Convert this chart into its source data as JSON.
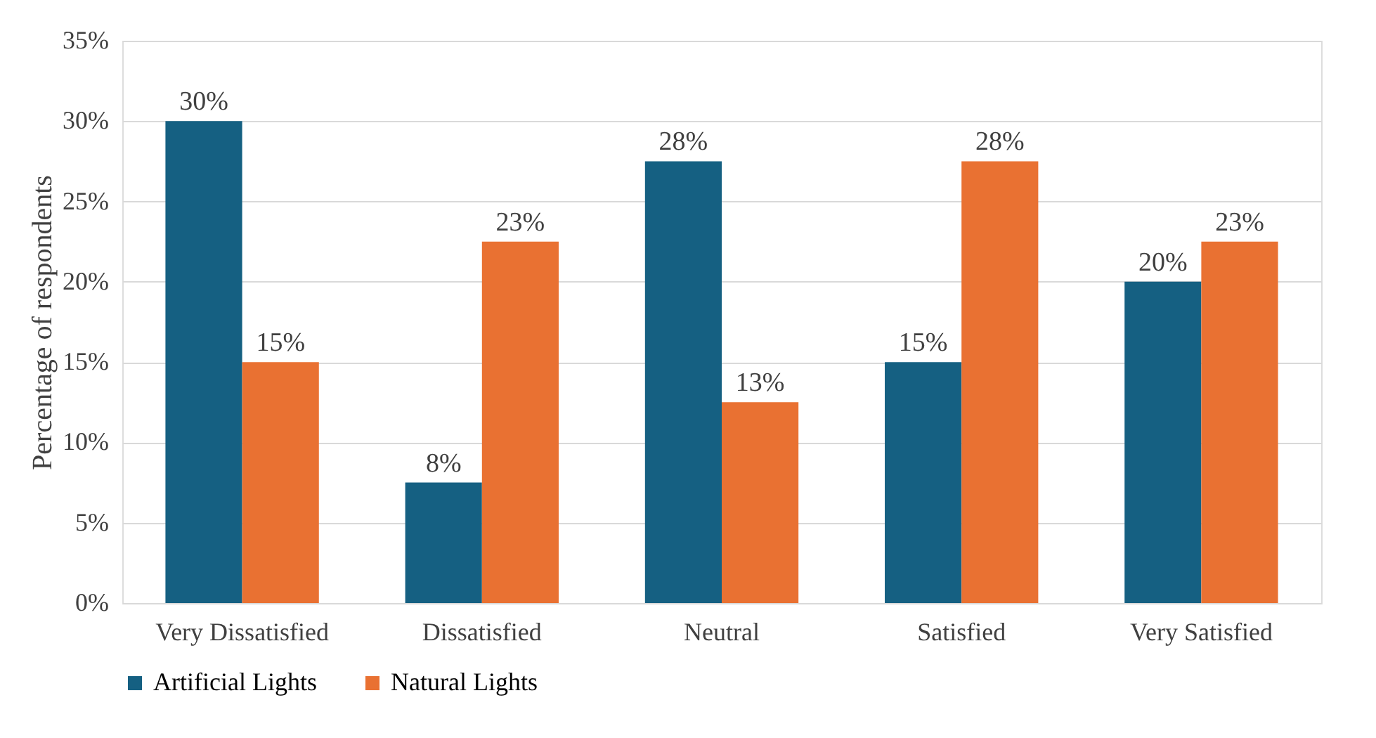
{
  "chart_data": {
    "type": "bar",
    "ylabel": "Percentage of respondents",
    "categories": [
      "Very Dissatisfied",
      "Dissatisfied",
      "Neutral",
      "Satisfied",
      "Very Satisfied"
    ],
    "series": [
      {
        "name": "Artificial Lights",
        "color": "#156082",
        "values": [
          30,
          7.5,
          27.5,
          15,
          20
        ],
        "value_labels": [
          "30%",
          "8%",
          "28%",
          "15%",
          "20%"
        ]
      },
      {
        "name": "Natural Lights",
        "color": "#e97132",
        "values": [
          15,
          22.5,
          12.5,
          27.5,
          22.5
        ],
        "value_labels": [
          "15%",
          "23%",
          "13%",
          "28%",
          "23%"
        ]
      }
    ],
    "ylim": [
      0,
      35
    ],
    "yticks": [
      {
        "value": 0,
        "label": "0%"
      },
      {
        "value": 5,
        "label": "5%"
      },
      {
        "value": 10,
        "label": "10%"
      },
      {
        "value": 15,
        "label": "15%"
      },
      {
        "value": 20,
        "label": "20%"
      },
      {
        "value": 25,
        "label": "25%"
      },
      {
        "value": 30,
        "label": "30%"
      },
      {
        "value": 35,
        "label": "35%"
      }
    ],
    "grid": "y",
    "legend": "bottom"
  }
}
